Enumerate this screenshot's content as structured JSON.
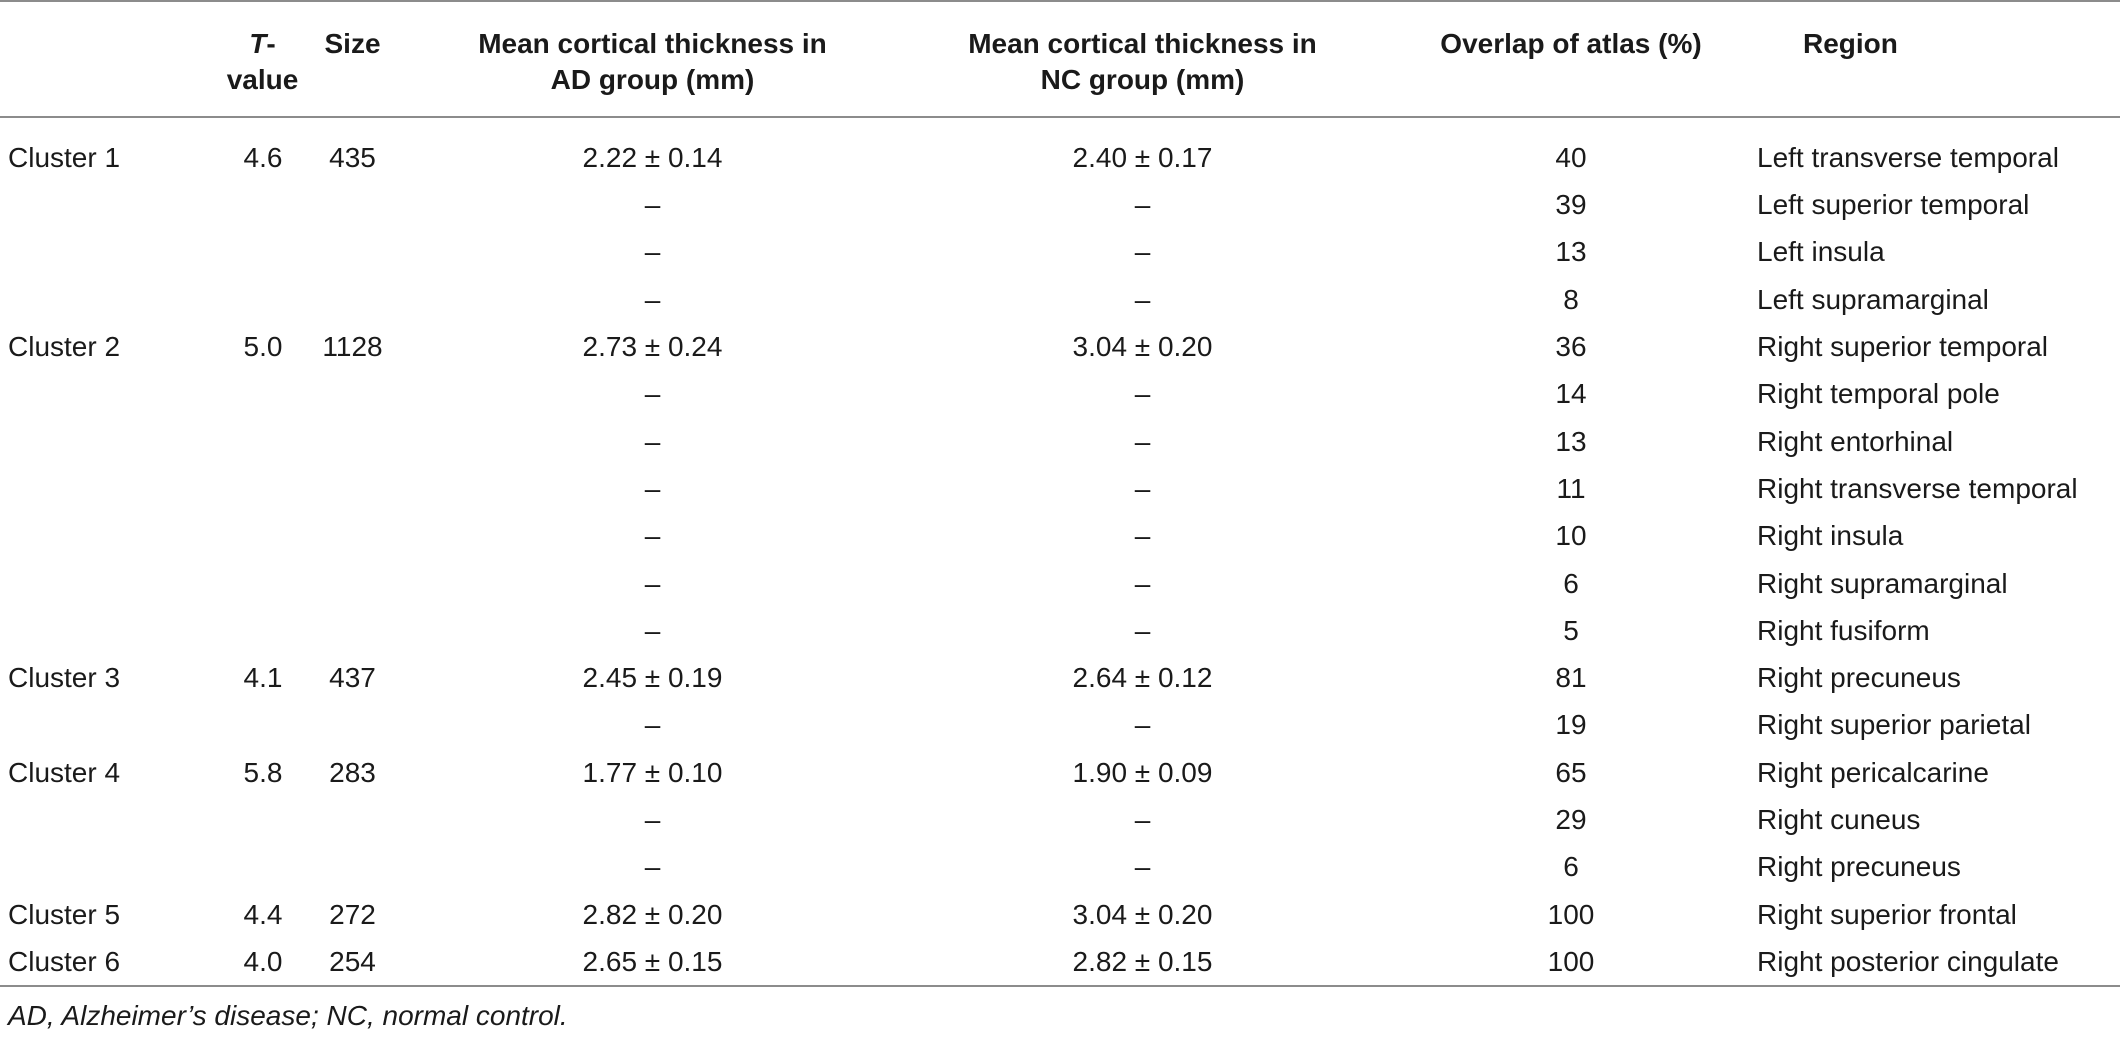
{
  "table": {
    "headers": {
      "t_value_italic": "T",
      "t_value_rest": "-value",
      "size": "Size",
      "ad_mean_line1": "Mean cortical thickness in",
      "ad_mean_line2": "AD group (mm)",
      "nc_mean_line1": "Mean cortical thickness in",
      "nc_mean_line2": "NC group (mm)",
      "overlap": "Overlap of atlas (%)",
      "region": "Region"
    },
    "rows": [
      {
        "cluster": "Cluster 1",
        "t": "4.6",
        "size": "435",
        "ad": "2.22 ± 0.14",
        "nc": "2.40 ± 0.17",
        "overlap": "40",
        "region": "Left transverse temporal"
      },
      {
        "cluster": "",
        "t": "",
        "size": "",
        "ad": "–",
        "nc": "–",
        "overlap": "39",
        "region": "Left superior temporal"
      },
      {
        "cluster": "",
        "t": "",
        "size": "",
        "ad": "–",
        "nc": "–",
        "overlap": "13",
        "region": "Left insula"
      },
      {
        "cluster": "",
        "t": "",
        "size": "",
        "ad": "–",
        "nc": "–",
        "overlap": "8",
        "region": "Left supramarginal"
      },
      {
        "cluster": "Cluster 2",
        "t": "5.0",
        "size": "1128",
        "ad": "2.73 ± 0.24",
        "nc": "3.04 ± 0.20",
        "overlap": "36",
        "region": "Right superior temporal"
      },
      {
        "cluster": "",
        "t": "",
        "size": "",
        "ad": "–",
        "nc": "–",
        "overlap": "14",
        "region": "Right temporal pole"
      },
      {
        "cluster": "",
        "t": "",
        "size": "",
        "ad": "–",
        "nc": "–",
        "overlap": "13",
        "region": "Right entorhinal"
      },
      {
        "cluster": "",
        "t": "",
        "size": "",
        "ad": "–",
        "nc": "–",
        "overlap": "11",
        "region": "Right transverse temporal"
      },
      {
        "cluster": "",
        "t": "",
        "size": "",
        "ad": "–",
        "nc": "–",
        "overlap": "10",
        "region": "Right insula"
      },
      {
        "cluster": "",
        "t": "",
        "size": "",
        "ad": "–",
        "nc": "–",
        "overlap": "6",
        "region": "Right supramarginal"
      },
      {
        "cluster": "",
        "t": "",
        "size": "",
        "ad": "–",
        "nc": "–",
        "overlap": "5",
        "region": "Right fusiform"
      },
      {
        "cluster": "Cluster 3",
        "t": "4.1",
        "size": "437",
        "ad": "2.45 ± 0.19",
        "nc": "2.64 ± 0.12",
        "overlap": "81",
        "region": "Right precuneus"
      },
      {
        "cluster": "",
        "t": "",
        "size": "",
        "ad": "–",
        "nc": "–",
        "overlap": "19",
        "region": "Right superior parietal"
      },
      {
        "cluster": "Cluster 4",
        "t": "5.8",
        "size": "283",
        "ad": "1.77 ± 0.10",
        "nc": "1.90 ± 0.09",
        "overlap": "65",
        "region": "Right pericalcarine"
      },
      {
        "cluster": "",
        "t": "",
        "size": "",
        "ad": "–",
        "nc": "–",
        "overlap": "29",
        "region": "Right cuneus"
      },
      {
        "cluster": "",
        "t": "",
        "size": "",
        "ad": "–",
        "nc": "–",
        "overlap": "6",
        "region": "Right precuneus"
      },
      {
        "cluster": "Cluster 5",
        "t": "4.4",
        "size": "272",
        "ad": "2.82 ± 0.20",
        "nc": "3.04 ± 0.20",
        "overlap": "100",
        "region": "Right superior frontal"
      },
      {
        "cluster": "Cluster 6",
        "t": "4.0",
        "size": "254",
        "ad": "2.65 ± 0.15",
        "nc": "2.82 ± 0.15",
        "overlap": "100",
        "region": "Right posterior cingulate"
      }
    ]
  },
  "footnote": "AD, Alzheimer’s disease; NC, normal control."
}
